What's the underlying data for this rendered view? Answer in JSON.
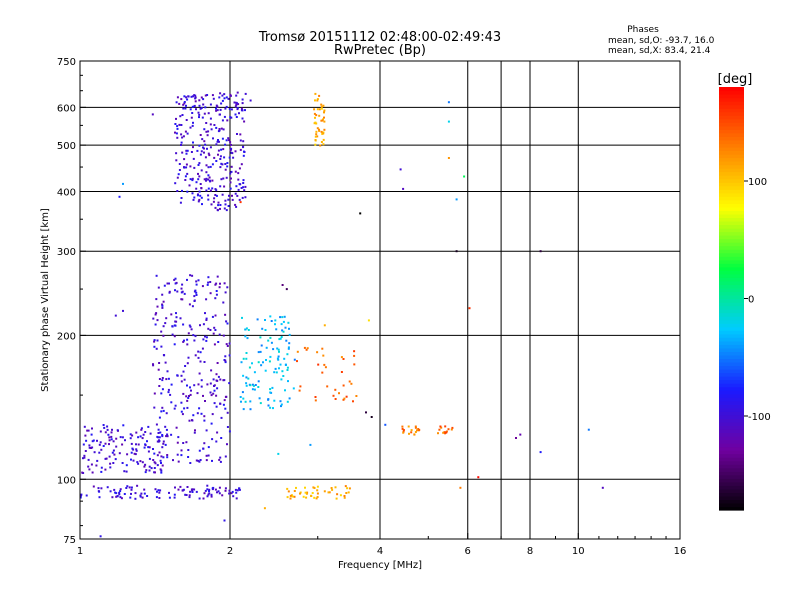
{
  "chart_data": {
    "type": "scatter",
    "title": "Tromsø 20151112 02:48:00-02:49:43",
    "subtitle": "RwPretec (Bp)",
    "xlabel": "Frequency [MHz]",
    "ylabel": "Stationary phase Virtual Height [km]",
    "x_scale": "log",
    "y_scale": "log",
    "xlim": [
      1,
      16
    ],
    "ylim": [
      75,
      750
    ],
    "x_ticks": [
      1,
      2,
      4,
      6,
      8,
      10,
      16
    ],
    "x_tick_labels": [
      "1",
      "2",
      "4",
      "6",
      "8",
      "10",
      "16"
    ],
    "x_gridlines": [
      2,
      4,
      6,
      7,
      8,
      10
    ],
    "y_ticks": [
      75,
      100,
      200,
      300,
      400,
      500,
      600,
      750
    ],
    "y_tick_labels": [
      "75",
      "100",
      "200",
      "300",
      "400",
      "500",
      "600",
      "750"
    ],
    "y_gridlines": [
      100,
      200,
      300,
      400,
      500,
      600
    ],
    "grid": true,
    "phase_info": {
      "heading": "Phases",
      "line_o": "mean, sd,O: -93.7, 16.0",
      "line_x": "mean, sd,X: 83.4, 21.4"
    },
    "colorbar": {
      "label": "[deg]",
      "range": [
        -180,
        180
      ],
      "ticks": [
        100,
        0,
        -100
      ],
      "tick_labels": [
        "100",
        "0",
        "-100"
      ],
      "colormap": [
        "#000000",
        "#7000a0",
        "#1a1aff",
        "#00ccff",
        "#00ff40",
        "#ffff00",
        "#ff8000",
        "#ff0000"
      ]
    },
    "clusters": [
      {
        "name": "",
        "x_range": [
          1.0,
          2.1
        ],
        "y_range": [
          91,
          97
        ],
        "phase": -100,
        "count": 110
      },
      {
        "name": "",
        "x_range": [
          2.6,
          3.5
        ],
        "y_range": [
          91,
          97
        ],
        "phase": 110,
        "count": 45
      },
      {
        "name": "",
        "x_range": [
          1.01,
          1.5
        ],
        "y_range": [
          103,
          130
        ],
        "phase": -100,
        "count": 150
      },
      {
        "name": "",
        "x_range": [
          1.4,
          2.0
        ],
        "y_range": [
          108,
          270
        ],
        "phase": -100,
        "count": 300
      },
      {
        "name": "",
        "x_range": [
          2.1,
          2.7
        ],
        "y_range": [
          140,
          220
        ],
        "phase": -30,
        "count": 120
      },
      {
        "name": "",
        "x_range": [
          2.7,
          3.6
        ],
        "y_range": [
          145,
          190
        ],
        "phase": 140,
        "count": 35
      },
      {
        "name": "",
        "x_range": [
          1.55,
          2.15
        ],
        "y_range": [
          365,
          645
        ],
        "phase": -100,
        "count": 330
      },
      {
        "name": "",
        "x_range": [
          2.95,
          3.1
        ],
        "y_range": [
          495,
          650
        ],
        "phase": 110,
        "count": 45
      },
      {
        "name": "",
        "x_range": [
          4.4,
          4.8
        ],
        "y_range": [
          124,
          129
        ],
        "phase": 130,
        "count": 18
      },
      {
        "name": "",
        "x_range": [
          5.2,
          5.6
        ],
        "y_range": [
          124,
          129
        ],
        "phase": 140,
        "count": 14
      }
    ],
    "points": [
      {
        "x": 1.4,
        "y": 580,
        "phase": -110
      },
      {
        "x": 1.22,
        "y": 415,
        "phase": -40
      },
      {
        "x": 1.2,
        "y": 390,
        "phase": -80
      },
      {
        "x": 1.18,
        "y": 220,
        "phase": -100
      },
      {
        "x": 1.22,
        "y": 225,
        "phase": -100
      },
      {
        "x": 2.15,
        "y": 640,
        "phase": -100
      },
      {
        "x": 2.2,
        "y": 620,
        "phase": -100
      },
      {
        "x": 2.1,
        "y": 380,
        "phase": 160
      },
      {
        "x": 3.65,
        "y": 360,
        "phase": -180
      },
      {
        "x": 4.4,
        "y": 445,
        "phase": -100
      },
      {
        "x": 4.45,
        "y": 405,
        "phase": -110
      },
      {
        "x": 5.5,
        "y": 615,
        "phase": -50
      },
      {
        "x": 5.5,
        "y": 560,
        "phase": -20
      },
      {
        "x": 5.5,
        "y": 470,
        "phase": 120
      },
      {
        "x": 5.9,
        "y": 430,
        "phase": 20
      },
      {
        "x": 5.7,
        "y": 385,
        "phase": -40
      },
      {
        "x": 5.7,
        "y": 300,
        "phase": -170
      },
      {
        "x": 8.4,
        "y": 300,
        "phase": -160
      },
      {
        "x": 6.05,
        "y": 228,
        "phase": 160
      },
      {
        "x": 2.55,
        "y": 255,
        "phase": -140
      },
      {
        "x": 2.6,
        "y": 250,
        "phase": -150
      },
      {
        "x": 3.8,
        "y": 215,
        "phase": 90
      },
      {
        "x": 3.1,
        "y": 210,
        "phase": 110
      },
      {
        "x": 3.75,
        "y": 138,
        "phase": -160
      },
      {
        "x": 3.85,
        "y": 135,
        "phase": -170
      },
      {
        "x": 4.1,
        "y": 130,
        "phase": -60
      },
      {
        "x": 7.5,
        "y": 122,
        "phase": -130
      },
      {
        "x": 7.65,
        "y": 124,
        "phase": -120
      },
      {
        "x": 8.4,
        "y": 114,
        "phase": -80
      },
      {
        "x": 6.3,
        "y": 101,
        "phase": 175
      },
      {
        "x": 5.8,
        "y": 96,
        "phase": 130
      },
      {
        "x": 10.5,
        "y": 127,
        "phase": -50
      },
      {
        "x": 11.2,
        "y": 96,
        "phase": -110
      },
      {
        "x": 2.5,
        "y": 113,
        "phase": -20
      },
      {
        "x": 2.9,
        "y": 118,
        "phase": -40
      },
      {
        "x": 1.95,
        "y": 82,
        "phase": -90
      },
      {
        "x": 2.35,
        "y": 87,
        "phase": 110
      },
      {
        "x": 1.1,
        "y": 76,
        "phase": -90
      }
    ]
  }
}
